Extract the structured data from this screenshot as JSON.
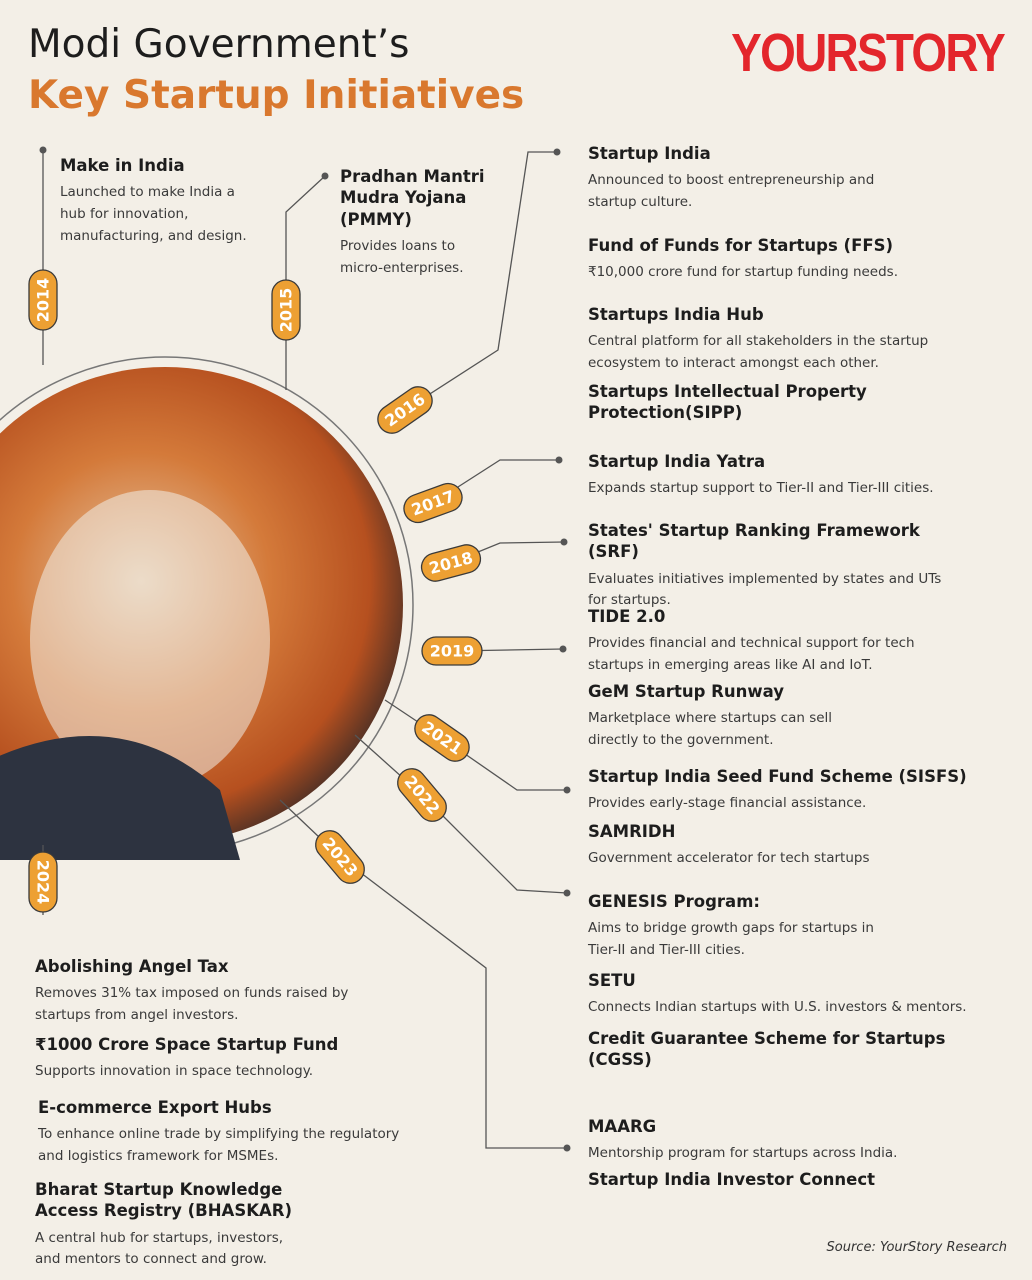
{
  "header": {
    "title_line1": "Modi Government’s",
    "title_line2": "Key Startup Initiatives",
    "brand": "YOURSTORY"
  },
  "years": [
    {
      "year": "2014",
      "items": [
        {
          "title": "Make in India",
          "desc": "Launched to make India a hub for innovation, manufacturing, and design."
        }
      ]
    },
    {
      "year": "2015",
      "items": [
        {
          "title": "Pradhan Mantri Mudra Yojana (PMMY)",
          "desc": "Provides loans to micro-enterprises."
        }
      ]
    },
    {
      "year": "2016",
      "items": [
        {
          "title": "Startup India",
          "desc": "Announced to boost entrepreneurship and startup culture."
        },
        {
          "title": "Fund of Funds for Startups (FFS)",
          "desc": "₹10,000 crore fund for startup funding needs."
        },
        {
          "title": "Startups India Hub",
          "desc": "Central platform for all stakeholders in the startup ecosystem to interact amongst each other."
        },
        {
          "title": "Startups Intellectual Property Protection(SIPP)"
        }
      ]
    },
    {
      "year": "2017",
      "items": [
        {
          "title": "Startup India Yatra",
          "desc": "Expands startup support to Tier-II and Tier-III cities."
        }
      ]
    },
    {
      "year": "2018",
      "items": [
        {
          "title": "States' Startup Ranking Framework (SRF)",
          "desc": "Evaluates initiatives implemented by states and UTs for startups."
        }
      ]
    },
    {
      "year": "2019",
      "items": [
        {
          "title": "TIDE 2.0",
          "desc": "Provides financial and technical support for tech startups in emerging areas like AI and IoT."
        },
        {
          "title": "GeM Startup Runway",
          "desc": "Marketplace where startups can sell directly to the government."
        }
      ]
    },
    {
      "year": "2021",
      "items": [
        {
          "title": "Startup India Seed Fund Scheme (SISFS)",
          "desc": "Provides early-stage financial assistance."
        },
        {
          "title": "SAMRIDH",
          "desc": "Government accelerator for tech startups"
        }
      ]
    },
    {
      "year": "2022",
      "items": [
        {
          "title": "GENESIS Program:",
          "desc": "Aims to bridge growth gaps for startups in Tier-II and Tier-III cities."
        },
        {
          "title": "SETU",
          "desc": "Connects Indian startups with U.S. investors & mentors."
        },
        {
          "title": "Credit Guarantee Scheme for Startups (CGSS)"
        }
      ]
    },
    {
      "year": "2023",
      "items": [
        {
          "title": "MAARG",
          "desc": "Mentorship program for startups across India."
        },
        {
          "title": "Startup India Investor Connect"
        }
      ]
    },
    {
      "year": "2024",
      "items": [
        {
          "title": "Abolishing Angel Tax",
          "desc": "Removes 31% tax imposed on funds raised by startups from angel investors."
        },
        {
          "title": "₹1000 Crore Space Startup Fund",
          "desc": "Supports innovation in space technology."
        },
        {
          "title": "E-commerce Export Hubs",
          "desc": "To enhance online trade by simplifying the regulatory and logistics framework for MSMEs."
        },
        {
          "title": "Bharat Startup Knowledge Access Registry (BHASKAR)",
          "desc": "A central hub for startups, investors, and mentors to connect and grow."
        }
      ]
    }
  ],
  "source": "Source:  YourStory Research"
}
